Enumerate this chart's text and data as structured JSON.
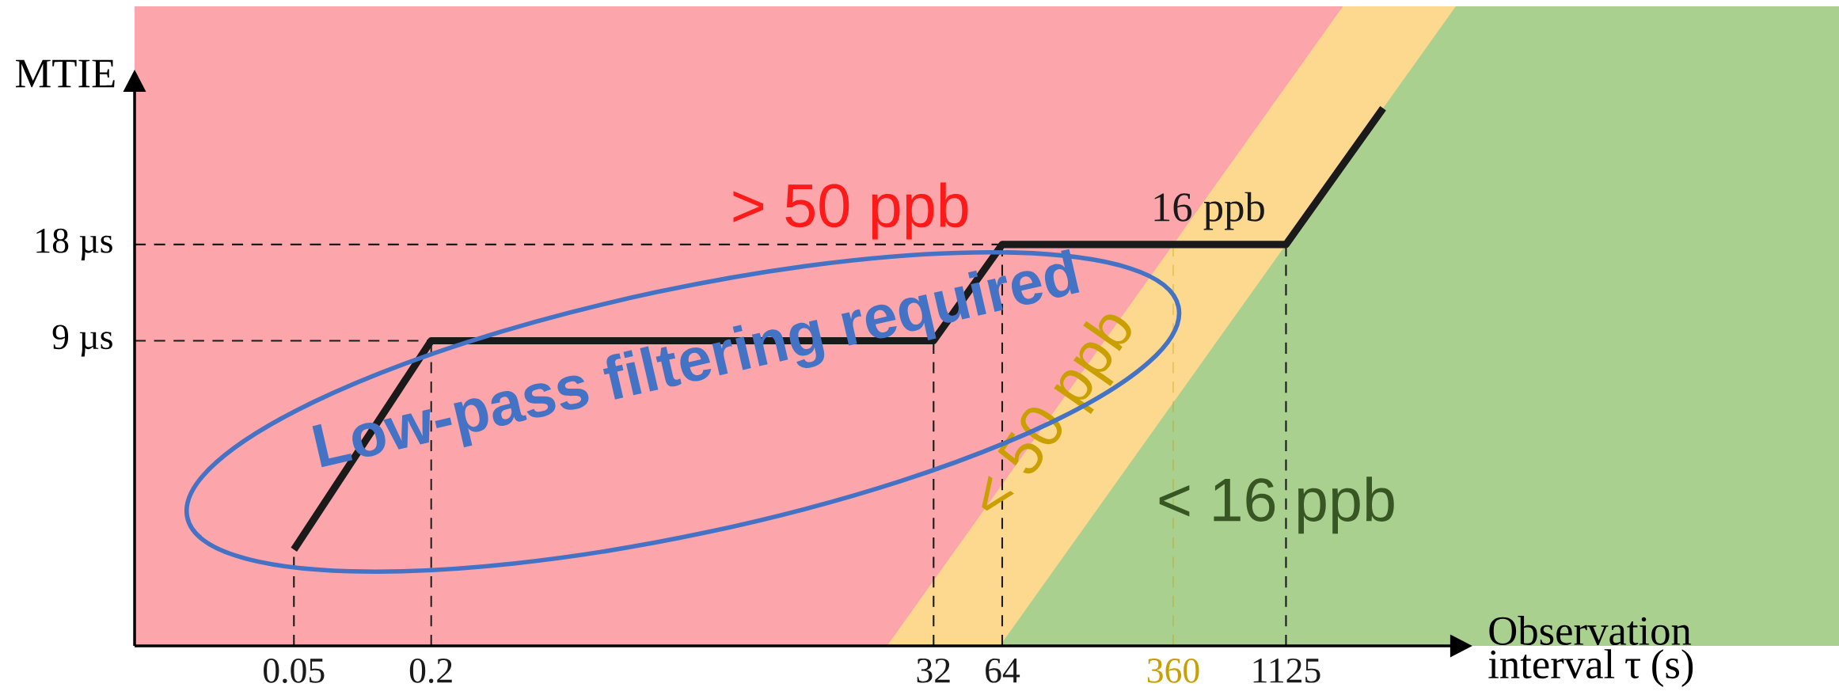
{
  "chart_data": {
    "type": "line",
    "xlabel": "Observation interval τ (s)",
    "ylabel": "MTIE",
    "log": "xy",
    "xlim": [
      0.01,
      300000
    ],
    "ylim": [
      1,
      100
    ],
    "xticks": [
      0.05,
      0.2,
      32,
      64,
      360,
      1125
    ],
    "yticks": [
      {
        "value": 9,
        "label": "9 µs"
      },
      {
        "value": 18,
        "label": "18 µs"
      }
    ],
    "series": [
      {
        "type": "area",
        "color": "#fdd88f",
        "x": [
          20,
          2000,
          300000
        ],
        "values": [
          1,
          100,
          100
        ]
      },
      {
        "type": "area",
        "color": "#a9d08e",
        "x": [
          62.5,
          6250,
          300000
        ],
        "values": [
          1,
          100,
          100
        ]
      },
      {
        "color": "#1a1a1a",
        "x": [
          0.05,
          0.2,
          32,
          64,
          1125,
          3000
        ],
        "values": [
          2,
          9,
          9,
          18,
          18,
          48
        ]
      }
    ],
    "ref_lines": [
      {
        "axis": "x",
        "value": 0.05,
        "line_style": "dashed",
        "color": "#1a1a1a"
      },
      {
        "axis": "x",
        "value": 0.2,
        "line_style": "dashed",
        "color": "#1a1a1a"
      },
      {
        "axis": "x",
        "value": 32,
        "line_style": "dashed",
        "color": "#1a1a1a"
      },
      {
        "axis": "x",
        "value": 64,
        "line_style": "dashed",
        "color": "#1a1a1a"
      },
      {
        "axis": "x",
        "value": 360,
        "line_style": "dashed",
        "color": "#c9a000"
      },
      {
        "axis": "x",
        "value": 1125,
        "line_style": "dashed",
        "color": "#1a1a1a"
      },
      {
        "axis": "y",
        "value": 9,
        "line_style": "dashed",
        "color": "#1a1a1a"
      },
      {
        "axis": "y",
        "value": 18,
        "line_style": "dashed",
        "color": "#1a1a1a"
      }
    ],
    "annotations": [
      "> 50 ppb",
      "16 ppb",
      "< 50 ppb",
      "< 16 ppb",
      "Low-pass filtering required"
    ]
  }
}
